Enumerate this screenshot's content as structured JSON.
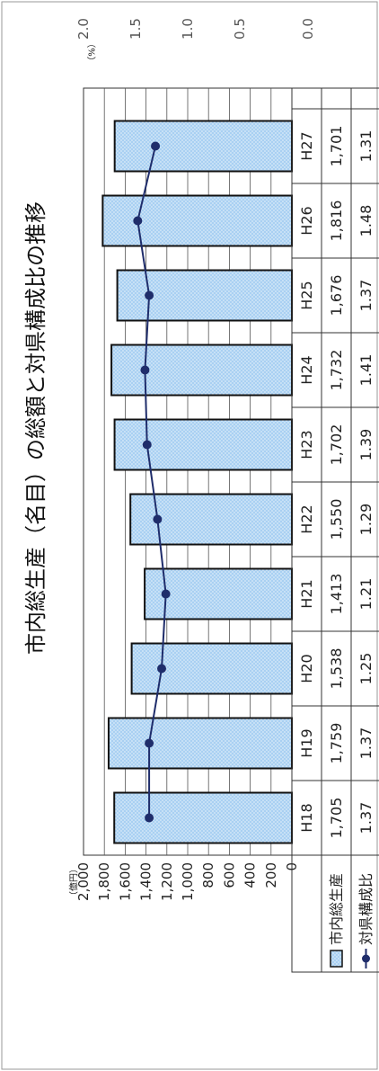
{
  "chart_data": {
    "type": "bar",
    "title": "市内総生産（名目）の総額と対県構成比の推移",
    "categories": [
      "H18",
      "H19",
      "H20",
      "H21",
      "H22",
      "H23",
      "H24",
      "H25",
      "H26",
      "H27"
    ],
    "left_axis": {
      "unit": "（億円）",
      "ticks": [
        "2,000",
        "1,800",
        "1,600",
        "1,400",
        "1,200",
        "1,000",
        "800",
        "600",
        "400",
        "200",
        "0"
      ],
      "range": [
        0,
        2000
      ]
    },
    "right_axis": {
      "unit": "（%）",
      "ticks": [
        "2.0",
        "1.5",
        "1.0",
        "0.5",
        "0.0"
      ],
      "range": [
        0,
        2
      ]
    },
    "series": [
      {
        "name": "市内総生産",
        "kind": "bar",
        "axis": "left",
        "values": [
          1705,
          1759,
          1538,
          1413,
          1550,
          1702,
          1732,
          1676,
          1816,
          1701
        ],
        "labels": [
          "1,705",
          "1,759",
          "1,538",
          "1,413",
          "1,550",
          "1,702",
          "1,732",
          "1,676",
          "1,816",
          "1,701"
        ],
        "color": "#9cc8ee"
      },
      {
        "name": "対県構成比",
        "kind": "line",
        "axis": "right",
        "values": [
          1.37,
          1.37,
          1.25,
          1.21,
          1.29,
          1.39,
          1.41,
          1.37,
          1.48,
          1.31
        ],
        "labels": [
          "1.37",
          "1.37",
          "1.25",
          "1.21",
          "1.29",
          "1.39",
          "1.41",
          "1.37",
          "1.48",
          "1.31"
        ],
        "color": "#1f2d6b"
      }
    ],
    "grid": true,
    "legend": "data-table-left"
  }
}
